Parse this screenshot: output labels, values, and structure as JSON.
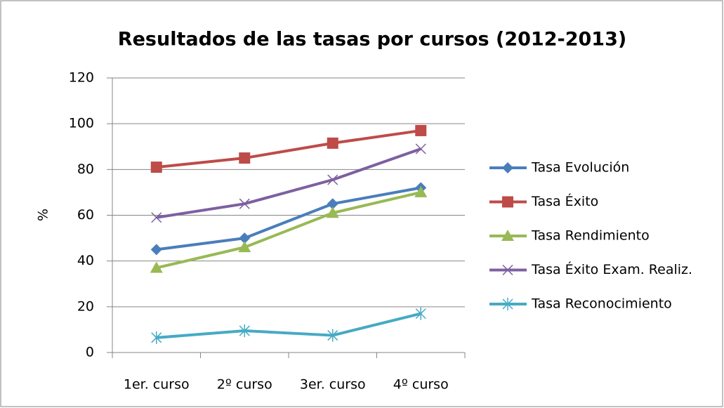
{
  "chart_data": {
    "type": "line",
    "title": "Resultados de las tasas por cursos (2012-2013)",
    "y_label": "%",
    "categories": [
      "1er. curso",
      "2º curso",
      "3er. curso",
      "4º curso"
    ],
    "series": [
      {
        "name": "Tasa Evolución",
        "color": "#4a7ebb",
        "marker": "diamond",
        "values": [
          45,
          50,
          65,
          72
        ]
      },
      {
        "name": "Tasa Éxito",
        "color": "#be4b48",
        "marker": "square",
        "values": [
          81,
          85,
          91.5,
          97
        ]
      },
      {
        "name": "Tasa Rendimiento",
        "color": "#98b954",
        "marker": "triangle",
        "values": [
          37,
          46,
          61,
          70
        ]
      },
      {
        "name": "Tasa Éxito Exam. Realiz.",
        "color": "#7d60a0",
        "marker": "x",
        "values": [
          59,
          65,
          75.5,
          89
        ]
      },
      {
        "name": "Tasa Reconocimiento",
        "color": "#46aac5",
        "marker": "star",
        "values": [
          6.5,
          9.5,
          7.5,
          17
        ]
      }
    ],
    "ylim": [
      0,
      120
    ],
    "yticks": [
      0,
      20,
      40,
      60,
      80,
      100,
      120
    ],
    "grid": true,
    "legend": "right"
  }
}
